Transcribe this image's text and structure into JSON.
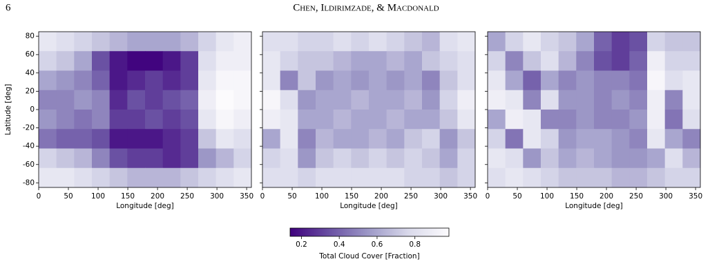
{
  "header": {
    "page": "6",
    "running_title": "Chen, Ildirimzade, & Macdonald"
  },
  "chart_data": [
    {
      "type": "heatmap",
      "xlabel": "Longitude [deg]",
      "ylabel": "Latitude [deg]",
      "xlim": [
        0,
        358
      ],
      "ylim": [
        -85,
        85
      ],
      "xticks": [
        0,
        50,
        100,
        150,
        200,
        250,
        300,
        350
      ],
      "yticks": [
        -80,
        -60,
        -40,
        -20,
        0,
        20,
        40,
        60,
        80
      ],
      "values": [
        [
          0.85,
          0.8,
          0.75,
          0.7,
          0.65,
          0.6,
          0.6,
          0.6,
          0.65,
          0.75,
          0.85,
          0.9
        ],
        [
          0.75,
          0.7,
          0.6,
          0.35,
          0.2,
          0.15,
          0.15,
          0.2,
          0.3,
          0.8,
          0.9,
          0.9
        ],
        [
          0.6,
          0.55,
          0.5,
          0.4,
          0.2,
          0.25,
          0.3,
          0.25,
          0.3,
          0.85,
          0.95,
          0.95
        ],
        [
          0.5,
          0.5,
          0.55,
          0.5,
          0.25,
          0.35,
          0.3,
          0.35,
          0.4,
          0.9,
          0.98,
          0.95
        ],
        [
          0.55,
          0.5,
          0.45,
          0.5,
          0.3,
          0.3,
          0.35,
          0.3,
          0.35,
          0.85,
          0.95,
          0.9
        ],
        [
          0.45,
          0.4,
          0.4,
          0.35,
          0.2,
          0.2,
          0.2,
          0.25,
          0.3,
          0.7,
          0.85,
          0.8
        ],
        [
          0.75,
          0.7,
          0.65,
          0.5,
          0.35,
          0.3,
          0.3,
          0.25,
          0.3,
          0.55,
          0.65,
          0.75
        ],
        [
          0.85,
          0.85,
          0.8,
          0.75,
          0.7,
          0.65,
          0.65,
          0.65,
          0.7,
          0.75,
          0.8,
          0.85
        ]
      ]
    },
    {
      "type": "heatmap",
      "xlabel": "Longitude [deg]",
      "xlim": [
        0,
        358
      ],
      "ylim": [
        -85,
        85
      ],
      "xticks": [
        0,
        50,
        100,
        150,
        200,
        250,
        300,
        350
      ],
      "yticks": [
        -80,
        -60,
        -40,
        -20,
        0,
        20,
        40,
        60,
        80
      ],
      "values": [
        [
          0.8,
          0.8,
          0.75,
          0.75,
          0.8,
          0.75,
          0.8,
          0.75,
          0.7,
          0.65,
          0.8,
          0.85
        ],
        [
          0.85,
          0.75,
          0.7,
          0.7,
          0.65,
          0.6,
          0.6,
          0.65,
          0.6,
          0.7,
          0.75,
          0.8
        ],
        [
          0.85,
          0.5,
          0.7,
          0.55,
          0.6,
          0.55,
          0.6,
          0.55,
          0.6,
          0.5,
          0.7,
          0.8
        ],
        [
          0.95,
          0.8,
          0.55,
          0.6,
          0.6,
          0.65,
          0.6,
          0.6,
          0.65,
          0.55,
          0.75,
          0.9
        ],
        [
          0.9,
          0.85,
          0.6,
          0.6,
          0.65,
          0.6,
          0.6,
          0.65,
          0.6,
          0.6,
          0.7,
          0.85
        ],
        [
          0.6,
          0.85,
          0.5,
          0.65,
          0.6,
          0.6,
          0.65,
          0.6,
          0.7,
          0.75,
          0.55,
          0.7
        ],
        [
          0.75,
          0.8,
          0.55,
          0.7,
          0.75,
          0.7,
          0.75,
          0.7,
          0.75,
          0.7,
          0.6,
          0.75
        ],
        [
          0.8,
          0.8,
          0.75,
          0.8,
          0.8,
          0.8,
          0.8,
          0.8,
          0.75,
          0.75,
          0.7,
          0.75
        ]
      ]
    },
    {
      "type": "heatmap",
      "xlabel": "Longitude [deg]",
      "xlim": [
        0,
        358
      ],
      "ylim": [
        -85,
        85
      ],
      "xticks": [
        0,
        50,
        100,
        150,
        200,
        250,
        300,
        350
      ],
      "yticks": [
        -80,
        -60,
        -40,
        -20,
        0,
        20,
        40,
        60,
        80
      ],
      "values": [
        [
          0.6,
          0.75,
          0.85,
          0.75,
          0.7,
          0.6,
          0.4,
          0.3,
          0.35,
          0.75,
          0.7,
          0.7
        ],
        [
          0.75,
          0.5,
          0.7,
          0.8,
          0.65,
          0.5,
          0.35,
          0.3,
          0.4,
          0.9,
          0.75,
          0.75
        ],
        [
          0.85,
          0.6,
          0.4,
          0.6,
          0.5,
          0.55,
          0.5,
          0.5,
          0.45,
          0.95,
          0.8,
          0.85
        ],
        [
          0.9,
          0.85,
          0.5,
          0.8,
          0.55,
          0.55,
          0.5,
          0.55,
          0.5,
          0.9,
          0.5,
          0.85
        ],
        [
          0.6,
          0.9,
          0.85,
          0.5,
          0.5,
          0.55,
          0.5,
          0.5,
          0.55,
          0.9,
          0.45,
          0.8
        ],
        [
          0.75,
          0.45,
          0.85,
          0.75,
          0.55,
          0.6,
          0.6,
          0.55,
          0.5,
          0.85,
          0.6,
          0.5
        ],
        [
          0.85,
          0.8,
          0.55,
          0.7,
          0.6,
          0.65,
          0.6,
          0.55,
          0.55,
          0.6,
          0.8,
          0.65
        ],
        [
          0.8,
          0.85,
          0.8,
          0.75,
          0.7,
          0.7,
          0.7,
          0.65,
          0.65,
          0.7,
          0.75,
          0.75
        ]
      ]
    }
  ],
  "colorbar": {
    "label": "Total Cloud Cover [Fraction]",
    "lim": [
      0.14,
      0.98
    ],
    "ticks": [
      0.2,
      0.4,
      0.6,
      0.8
    ],
    "colors": [
      "#3f007d",
      "#6a51a3",
      "#9e9ac8",
      "#dadaeb",
      "#fcfbfd"
    ]
  }
}
